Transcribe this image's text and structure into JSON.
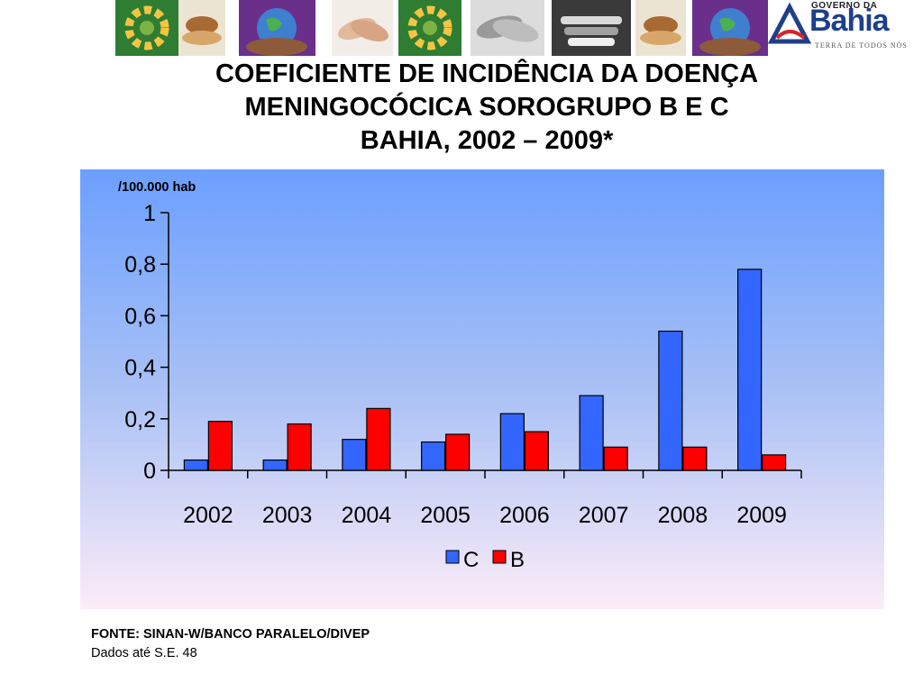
{
  "header": {
    "icons": [
      "children-circle-icon",
      "hands-bread-icon",
      "hands-globe-icon",
      "handshake-icon",
      "children-circle-icon",
      "holding-hands-icon",
      "stacked-hands-icon",
      "hands-bread-icon",
      "hands-globe-icon"
    ],
    "logo": {
      "top_text": "GOVERNO DA",
      "main_text": "Bahia",
      "bottom_text": "TERRA DE TODOS NÓS",
      "color": "#1e3f8a"
    }
  },
  "title": {
    "line1": "COEFICIENTE DE INCIDÊNCIA DA DOENÇA",
    "line2": "MENINGOCÓCICA SOROGRUPO B E C",
    "line3": "BAHIA, 2002 – 2009*"
  },
  "chart_data": {
    "type": "bar",
    "unit_label": "/100.000 hab",
    "categories": [
      "2002",
      "2003",
      "2004",
      "2005",
      "2006",
      "2007",
      "2008",
      "2009"
    ],
    "series": [
      {
        "name": "C",
        "color": "#3366ff",
        "values": [
          0.04,
          0.04,
          0.12,
          0.11,
          0.22,
          0.29,
          0.54,
          0.78
        ]
      },
      {
        "name": "B",
        "color": "#ff0000",
        "values": [
          0.19,
          0.18,
          0.24,
          0.14,
          0.15,
          0.09,
          0.09,
          0.06
        ]
      }
    ],
    "yticks": [
      "0",
      "0,2",
      "0,4",
      "0,6",
      "0,8",
      "1"
    ],
    "ylim": [
      0,
      1
    ],
    "grid": false,
    "legend_position": "bottom-center"
  },
  "footer": {
    "source": "FONTE: SINAN-W/BANCO PARALELO/DIVEP",
    "note": "Dados até S.E. 48"
  }
}
